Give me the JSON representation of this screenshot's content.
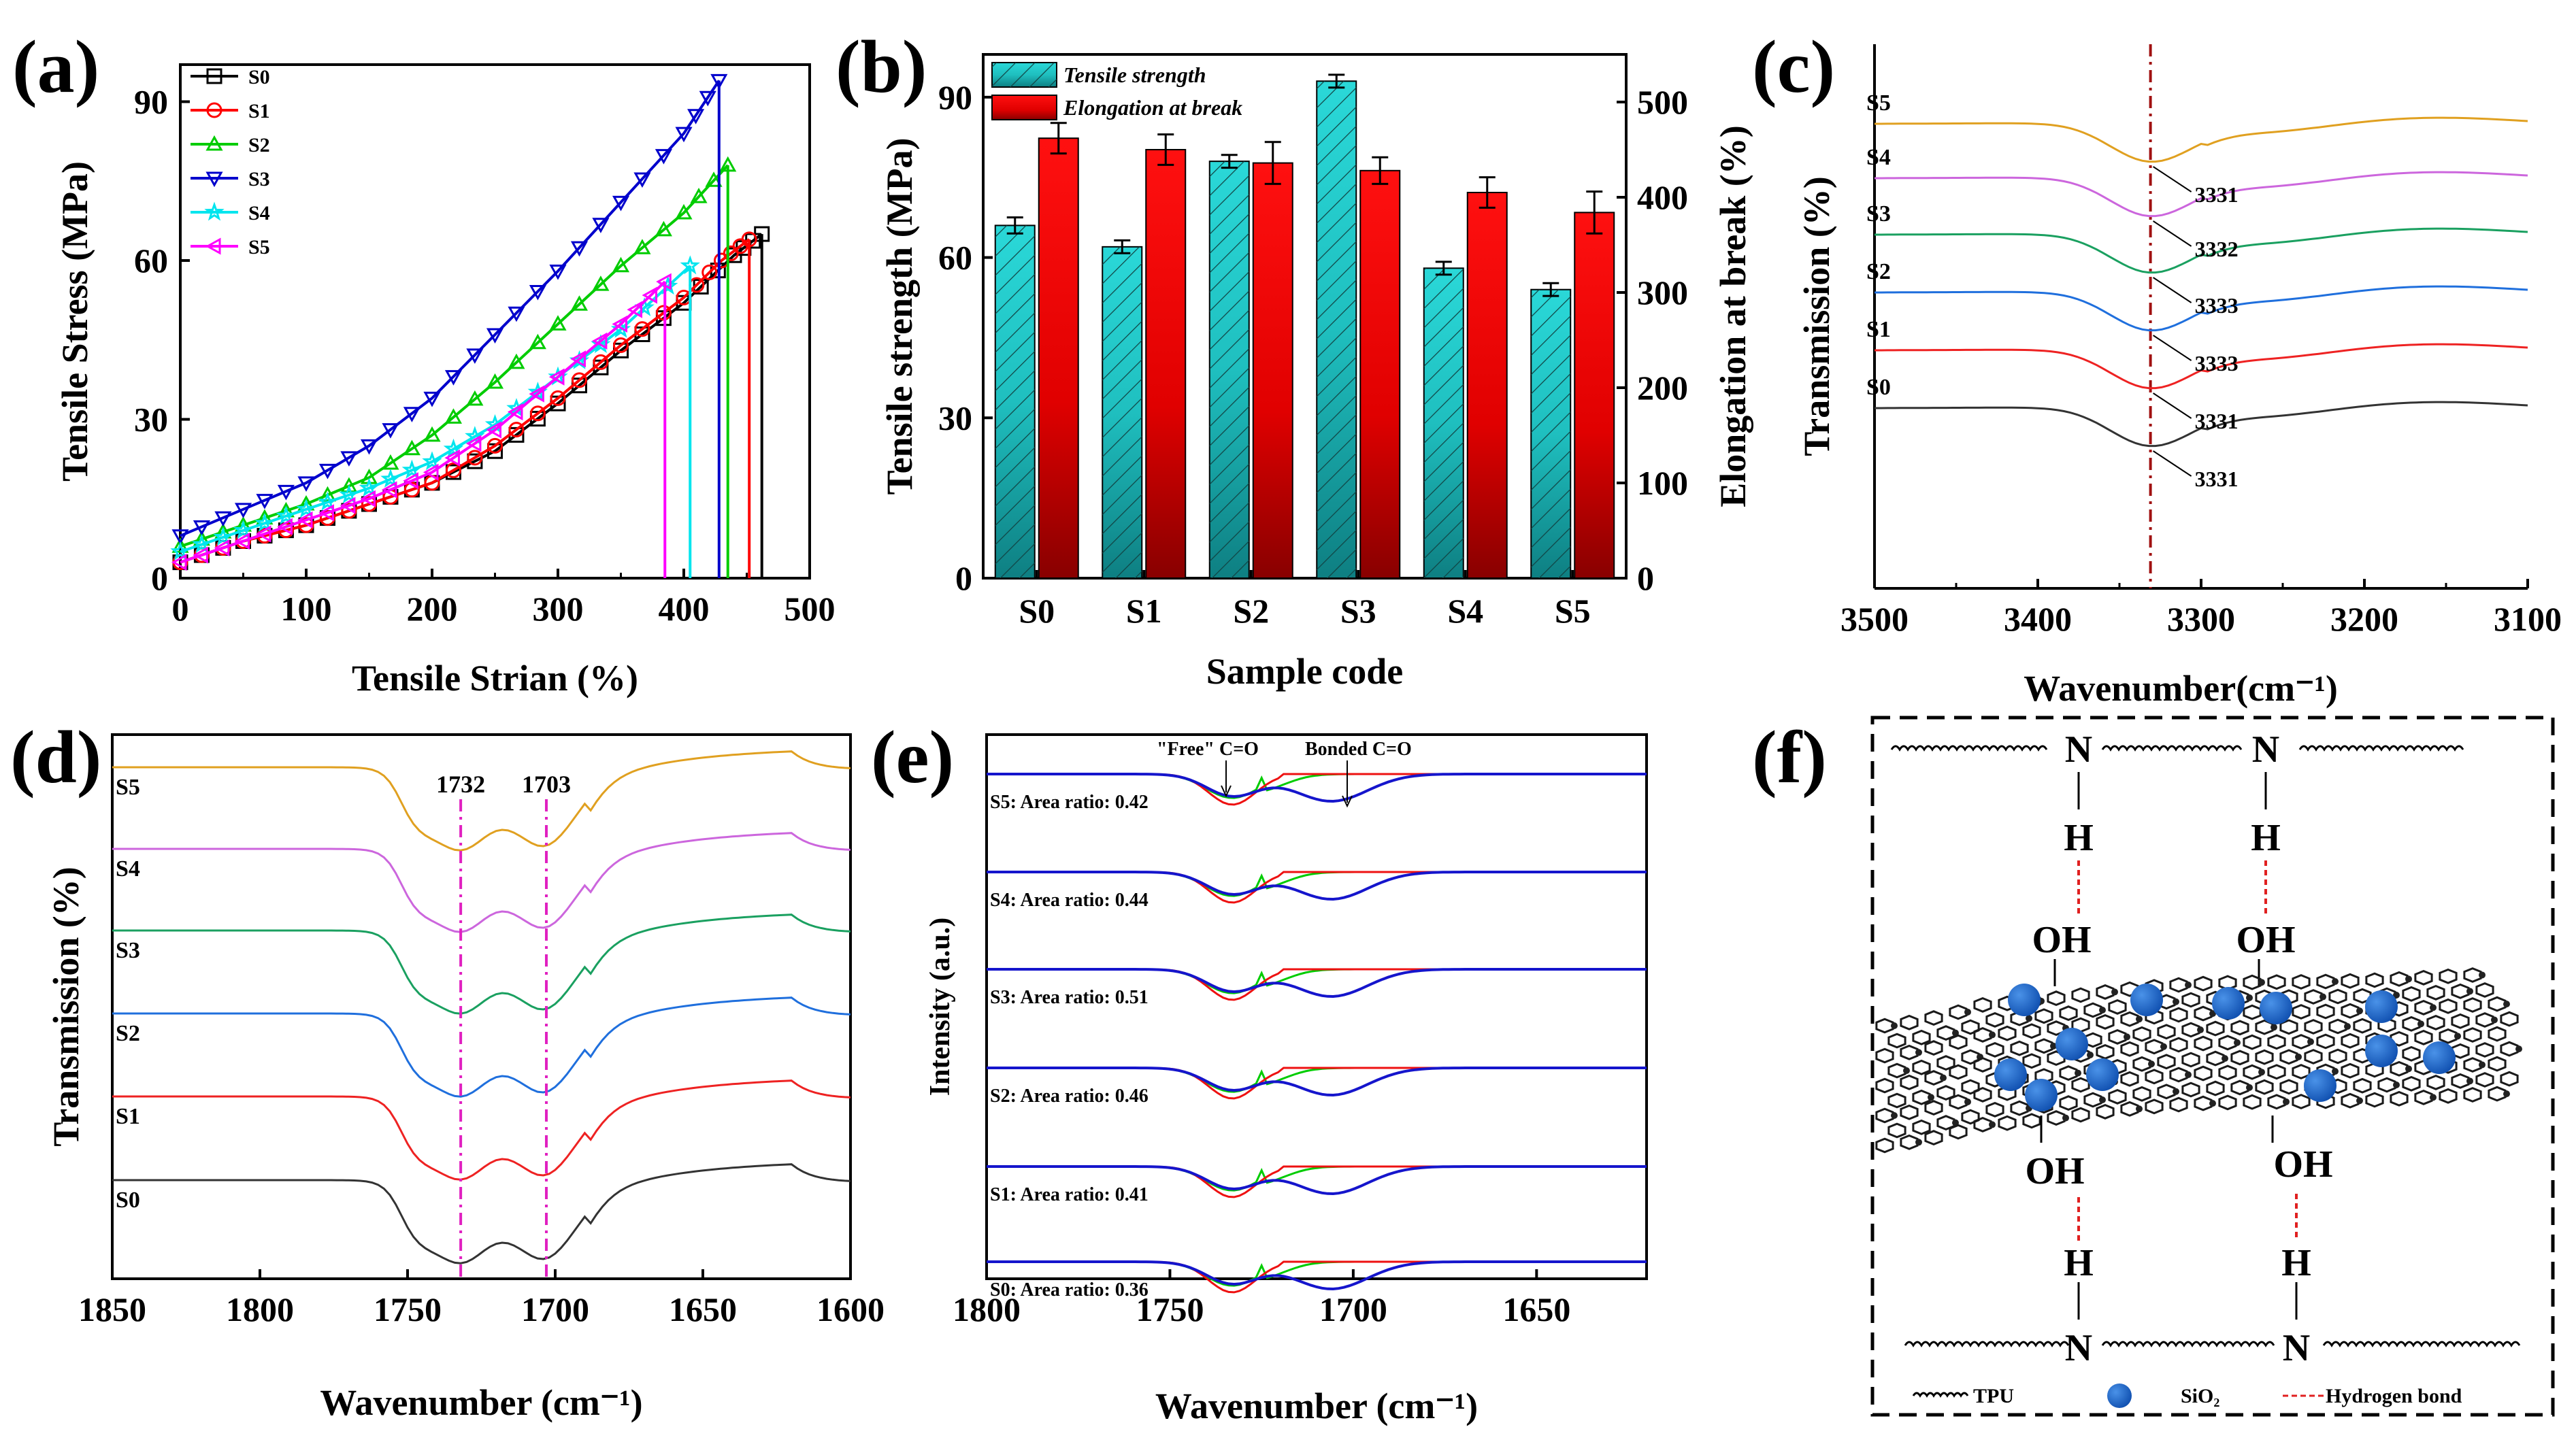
{
  "chart_data": [
    {
      "panel": "(a)",
      "type": "line",
      "xlabel": "Tensile Strian (%)",
      "ylabel": "Tensile Stress (MPa)",
      "xlim": [
        0,
        500
      ],
      "ylim": [
        0,
        97
      ],
      "xticks": [
        "0",
        "100",
        "200",
        "300",
        "400",
        "500"
      ],
      "yticks": [
        "0",
        "30",
        "60",
        "90"
      ],
      "series": [
        {
          "name": "S0",
          "color": "#000000",
          "marker": "square",
          "x": [
            0,
            50,
            100,
            150,
            200,
            250,
            300,
            350,
            400,
            440,
            462
          ],
          "y": [
            3,
            7,
            10,
            14,
            18,
            24,
            33,
            43,
            52,
            61,
            65
          ]
        },
        {
          "name": "S1",
          "color": "#ff0000",
          "marker": "circle",
          "x": [
            0,
            50,
            100,
            150,
            200,
            250,
            300,
            350,
            400,
            430,
            452
          ],
          "y": [
            3,
            7,
            10,
            14,
            18,
            25,
            34,
            44,
            53,
            60,
            64
          ]
        },
        {
          "name": "S2",
          "color": "#00cc00",
          "marker": "triangle-up",
          "x": [
            0,
            50,
            100,
            150,
            200,
            250,
            300,
            350,
            400,
            435
          ],
          "y": [
            6,
            10,
            14,
            19,
            27,
            37,
            48,
            59,
            69,
            78
          ]
        },
        {
          "name": "S3",
          "color": "#0000cc",
          "marker": "triangle-down",
          "x": [
            0,
            50,
            100,
            150,
            200,
            250,
            300,
            350,
            400,
            428
          ],
          "y": [
            8,
            13,
            18,
            25,
            34,
            46,
            58,
            71,
            84,
            94
          ]
        },
        {
          "name": "S4",
          "color": "#00e5ee",
          "marker": "star",
          "x": [
            0,
            50,
            100,
            150,
            200,
            250,
            300,
            350,
            405
          ],
          "y": [
            5,
            9,
            13,
            17,
            22,
            29,
            38,
            47,
            59
          ]
        },
        {
          "name": "S5",
          "color": "#ff00ff",
          "marker": "triangle-left",
          "x": [
            0,
            50,
            100,
            150,
            200,
            250,
            300,
            350,
            385
          ],
          "y": [
            3,
            7,
            11,
            15,
            20,
            28,
            38,
            48,
            56
          ]
        }
      ]
    },
    {
      "panel": "(b)",
      "type": "bar",
      "xlabel": "Sample code",
      "ylabel": "Tensile strength (MPa)",
      "y2label": "Elongation at break (%)",
      "categories": [
        "S0",
        "S1",
        "S2",
        "S3",
        "S4",
        "S5"
      ],
      "ylim": [
        0,
        98
      ],
      "y2lim": [
        0,
        550
      ],
      "yticks": [
        "0",
        "30",
        "60",
        "90"
      ],
      "y2ticks": [
        "0",
        "100",
        "200",
        "300",
        "400",
        "500"
      ],
      "series": [
        {
          "name": "Tensile strength",
          "color": "#1fd1d1",
          "values": [
            66,
            62,
            78,
            93,
            58,
            54
          ],
          "errors": [
            1.5,
            1.2,
            1.2,
            1.2,
            1.2,
            1.2
          ]
        },
        {
          "name": "Elongation at break",
          "color": "#ff0000",
          "values": [
            462,
            450,
            436,
            428,
            405,
            384
          ],
          "errors": [
            16,
            16,
            22,
            14,
            16,
            22
          ]
        }
      ]
    },
    {
      "panel": "(c)",
      "type": "line",
      "xlabel": "Wavenumber(cm⁻¹)",
      "ylabel": "Transmission (%)",
      "xlim": [
        3500,
        3100
      ],
      "xticks": [
        "3500",
        "3400",
        "3300",
        "3200",
        "3100"
      ],
      "vline": 3331,
      "series": [
        {
          "name": "S0",
          "color": "#333333",
          "peak_label": "3331"
        },
        {
          "name": "S1",
          "color": "#ee2222",
          "peak_label": "3331"
        },
        {
          "name": "S2",
          "color": "#1f6fdd",
          "peak_label": "3333"
        },
        {
          "name": "S3",
          "color": "#1aa060",
          "peak_label": "3333"
        },
        {
          "name": "S4",
          "color": "#cc66dd",
          "peak_label": "3332"
        },
        {
          "name": "S5",
          "color": "#e0a020",
          "peak_label": "3331"
        }
      ]
    },
    {
      "panel": "(d)",
      "type": "line",
      "xlabel": "Wavenumber (cm⁻¹)",
      "ylabel": "Transmission (%)",
      "xlim": [
        1850,
        1600
      ],
      "xticks": [
        "1850",
        "1800",
        "1750",
        "1700",
        "1650",
        "1600"
      ],
      "vlines": [
        1732,
        1703
      ],
      "vline_labels": [
        "1732",
        "1703"
      ],
      "series": [
        {
          "name": "S0",
          "color": "#333333"
        },
        {
          "name": "S1",
          "color": "#ee2222"
        },
        {
          "name": "S2",
          "color": "#1f6fdd"
        },
        {
          "name": "S3",
          "color": "#1aa060"
        },
        {
          "name": "S4",
          "color": "#cc66dd"
        },
        {
          "name": "S5",
          "color": "#e0a020"
        }
      ]
    },
    {
      "panel": "(e)",
      "type": "line",
      "xlabel": "Wavenumber (cm⁻¹)",
      "ylabel": "Intensity (a.u.)",
      "xlim": [
        1800,
        1620
      ],
      "xticks": [
        "1800",
        "1750",
        "1700",
        "1650"
      ],
      "annotations": [
        "\"Free\" C=O",
        "Bonded C=O"
      ],
      "samples": [
        {
          "label": "S0: Area ratio: 0.36"
        },
        {
          "label": "S1: Area ratio: 0.41"
        },
        {
          "label": "S2: Area ratio: 0.46"
        },
        {
          "label": "S3: Area ratio: 0.51"
        },
        {
          "label": "S4: Area ratio: 0.44"
        },
        {
          "label": "S5: Area ratio: 0.42"
        }
      ]
    }
  ],
  "diagram_f": {
    "panel": "(f)",
    "atoms": {
      "N": "N",
      "H": "H",
      "OH": "OH"
    },
    "legend": {
      "tpu": "TPU",
      "sio2": "SiO₂",
      "hbond": "Hydrogen bond"
    },
    "colors": {
      "oh_blue": "#1a3bd6",
      "sio2": "#1f6fd0",
      "hbond": "#e02020"
    }
  }
}
